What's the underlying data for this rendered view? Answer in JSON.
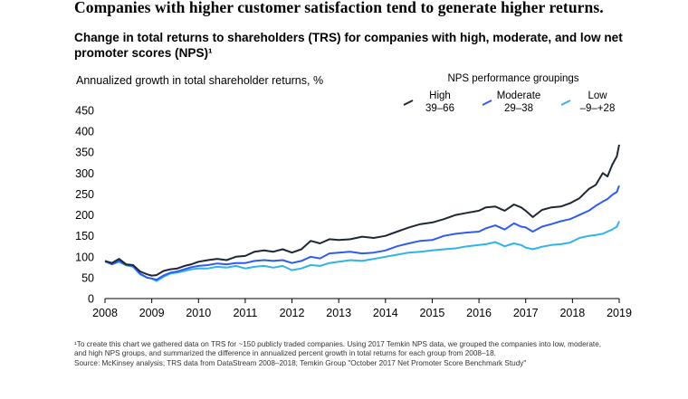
{
  "headline": "Companies with higher customer satisfaction tend to generate higher returns.",
  "footnote": {
    "line1": "¹To create this chart we gathered data on TRS for ~150 publicly traded companies. Using 2017 Temkin NPS data, we grouped the companies into low, moderate,",
    "line2": "and high NPS groups, and summarized the difference in annualized percent growth in total returns for each group from 2008–18.",
    "line3": "Source: McKinsey analysis; TRS data from DataStream 2008–2018; Temkin Group \"October 2017 Net Promoter Score Benchmark Study\""
  },
  "chart_data": {
    "type": "line",
    "title": "Change in total returns to shareholders (TRS) for companies with high, moderate, and low net promoter scores (NPS)¹",
    "ylabel": "Annualized growth in total shareholder returns, %",
    "xlabel": "",
    "xlim": [
      2008,
      2019
    ],
    "ylim": [
      0,
      450
    ],
    "yticks": [
      "0",
      "50",
      "100",
      "150",
      "200",
      "250",
      "300",
      "350",
      "400",
      "450"
    ],
    "xticks": [
      "2008",
      "2009",
      "2010",
      "2011",
      "2012",
      "2013",
      "2014",
      "2015",
      "2016",
      "2017",
      "2018",
      "2019"
    ],
    "legend_title": "NPS performance groupings",
    "legend_position": "top-right",
    "series": [
      {
        "name": "High",
        "range": "39–66",
        "color": "#1f2733",
        "x": [
          2008,
          2008.15,
          2008.3,
          2008.45,
          2008.6,
          2008.75,
          2008.9,
          2009,
          2009.1,
          2009.25,
          2009.4,
          2009.55,
          2009.7,
          2009.85,
          2010,
          2010.2,
          2010.4,
          2010.6,
          2010.8,
          2011,
          2011.2,
          2011.4,
          2011.6,
          2011.8,
          2012,
          2012.2,
          2012.4,
          2012.6,
          2012.8,
          2013,
          2013.25,
          2013.5,
          2013.75,
          2014,
          2014.25,
          2014.5,
          2014.75,
          2015,
          2015.25,
          2015.5,
          2015.75,
          2016,
          2016.15,
          2016.35,
          2016.55,
          2016.75,
          2016.9,
          2017,
          2017.15,
          2017.35,
          2017.55,
          2017.75,
          2017.95,
          2018.15,
          2018.35,
          2018.5,
          2018.65,
          2018.75,
          2018.85,
          2018.95,
          2019
        ],
        "values": [
          90,
          85,
          95,
          82,
          80,
          65,
          58,
          55,
          56,
          66,
          70,
          72,
          78,
          82,
          88,
          92,
          95,
          92,
          100,
          102,
          112,
          115,
          112,
          118,
          110,
          118,
          138,
          132,
          142,
          140,
          142,
          148,
          145,
          150,
          160,
          170,
          178,
          182,
          190,
          200,
          205,
          210,
          218,
          220,
          210,
          225,
          218,
          210,
          195,
          212,
          218,
          220,
          228,
          240,
          262,
          272,
          300,
          292,
          320,
          340,
          368
        ]
      },
      {
        "name": "Moderate",
        "range": "29–38",
        "color": "#2f5cf0",
        "x": [
          2008,
          2008.15,
          2008.3,
          2008.45,
          2008.6,
          2008.75,
          2008.9,
          2009,
          2009.1,
          2009.25,
          2009.4,
          2009.55,
          2009.7,
          2009.85,
          2010,
          2010.2,
          2010.4,
          2010.6,
          2010.8,
          2011,
          2011.2,
          2011.4,
          2011.6,
          2011.8,
          2012,
          2012.2,
          2012.4,
          2012.6,
          2012.8,
          2013,
          2013.25,
          2013.5,
          2013.75,
          2014,
          2014.25,
          2014.5,
          2014.75,
          2015,
          2015.25,
          2015.5,
          2015.75,
          2016,
          2016.15,
          2016.35,
          2016.55,
          2016.75,
          2016.9,
          2017,
          2017.15,
          2017.35,
          2017.55,
          2017.75,
          2017.95,
          2018.15,
          2018.35,
          2018.5,
          2018.65,
          2018.75,
          2018.85,
          2018.95,
          2019
        ],
        "values": [
          90,
          82,
          90,
          80,
          78,
          60,
          50,
          48,
          45,
          55,
          62,
          65,
          70,
          75,
          78,
          80,
          84,
          82,
          85,
          85,
          90,
          92,
          90,
          92,
          85,
          90,
          100,
          96,
          108,
          110,
          112,
          108,
          110,
          115,
          125,
          132,
          138,
          140,
          150,
          155,
          158,
          160,
          168,
          175,
          165,
          180,
          172,
          170,
          160,
          172,
          178,
          185,
          190,
          200,
          210,
          222,
          232,
          238,
          248,
          255,
          270
        ]
      },
      {
        "name": "Low",
        "range": "–9–+28",
        "color": "#2fb3e8",
        "x": [
          2008,
          2008.15,
          2008.3,
          2008.45,
          2008.6,
          2008.75,
          2008.9,
          2009,
          2009.1,
          2009.25,
          2009.4,
          2009.55,
          2009.7,
          2009.85,
          2010,
          2010.2,
          2010.4,
          2010.6,
          2010.8,
          2011,
          2011.2,
          2011.4,
          2011.6,
          2011.8,
          2012,
          2012.2,
          2012.4,
          2012.6,
          2012.8,
          2013,
          2013.25,
          2013.5,
          2013.75,
          2014,
          2014.25,
          2014.5,
          2014.75,
          2015,
          2015.25,
          2015.5,
          2015.75,
          2016,
          2016.15,
          2016.35,
          2016.55,
          2016.75,
          2016.9,
          2017,
          2017.15,
          2017.35,
          2017.55,
          2017.75,
          2017.95,
          2018.15,
          2018.35,
          2018.5,
          2018.65,
          2018.75,
          2018.85,
          2018.95,
          2019
        ],
        "values": [
          88,
          82,
          88,
          80,
          76,
          58,
          50,
          48,
          42,
          52,
          60,
          62,
          66,
          70,
          72,
          72,
          76,
          74,
          78,
          72,
          76,
          78,
          74,
          78,
          68,
          72,
          80,
          78,
          85,
          88,
          92,
          90,
          95,
          100,
          105,
          110,
          112,
          115,
          118,
          120,
          125,
          128,
          130,
          135,
          125,
          132,
          128,
          122,
          118,
          124,
          128,
          130,
          134,
          145,
          150,
          152,
          155,
          160,
          165,
          172,
          185
        ]
      }
    ]
  }
}
